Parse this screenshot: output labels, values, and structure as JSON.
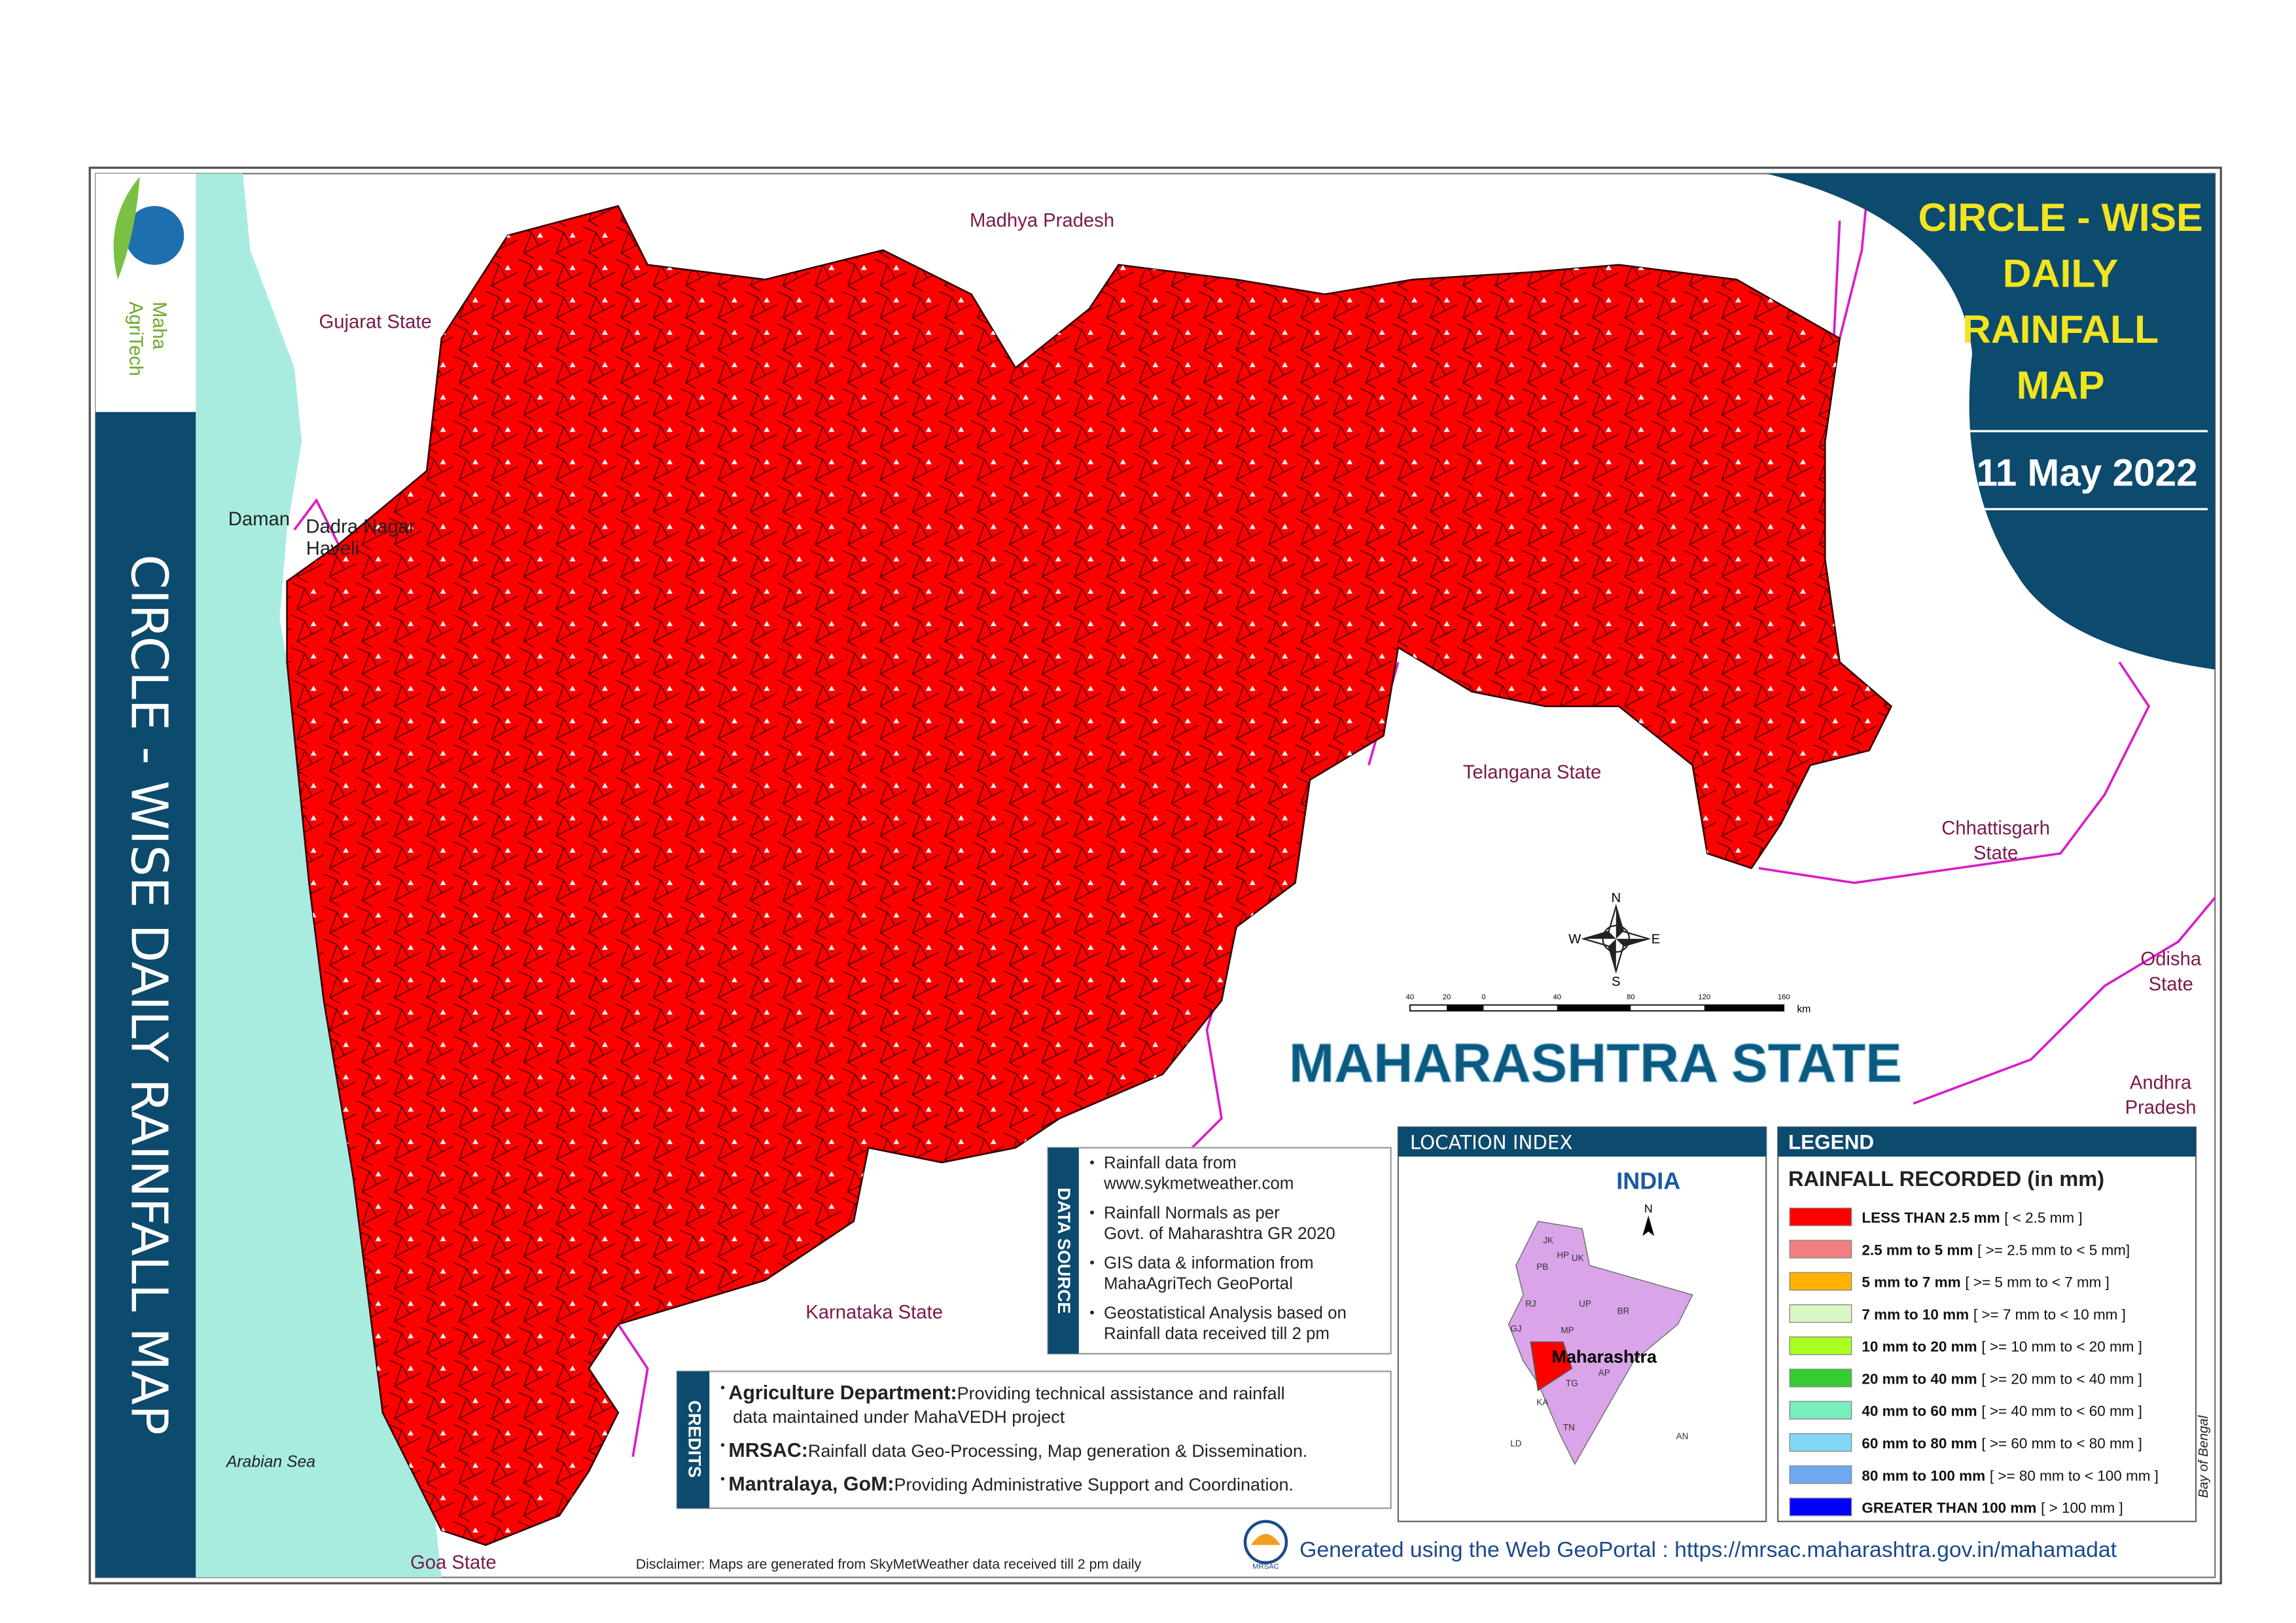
{
  "header": {
    "title_lines": [
      "CIRCLE - WISE",
      "DAILY",
      "RAINFALL",
      "MAP"
    ],
    "date": "11 May 2022",
    "side_banner": "CIRCLE - WISE DAILY RAINFALL MAP",
    "logo": [
      "Maha",
      "AgriTech"
    ]
  },
  "map": {
    "state_name": "MAHARASHTRA  STATE",
    "neighbors": [
      "Madhya Pradesh",
      "Gujarat State",
      "Daman",
      "Dadra Nagar",
      "Haveli",
      "Telangana State",
      "Chhattisgarh",
      "State",
      "Odisha",
      "State",
      "Andhra",
      "Pradesh",
      "Karnataka State",
      "Goa State",
      "Arabian Sea",
      "Bay of Bengal"
    ],
    "compass": [
      "N",
      "E",
      "S",
      "W"
    ],
    "scale_labels": [
      "40",
      "20",
      "0",
      "40",
      "80",
      "120",
      "160"
    ],
    "scale_unit": "km"
  },
  "location_index": {
    "title": "LOCATION  INDEX",
    "country": "INDIA",
    "highlight": "Maharashtra",
    "north": "N",
    "states": [
      "JK",
      "HP",
      "PB",
      "UK",
      "RJ",
      "UP",
      "BR",
      "GJ",
      "MP",
      "TG",
      "KA",
      "TN",
      "AP",
      "LD",
      "AN"
    ]
  },
  "legend": {
    "title": "LEGEND",
    "subtitle": "RAINFALL  RECORDED (in mm)",
    "entries": [
      {
        "label": "LESS THAN  2.5 mm",
        "range": "[ < 2.5 mm ]",
        "color": "#ff0000"
      },
      {
        "label": "2.5 mm to 5 mm",
        "range": "[ >= 2.5 mm  to  < 5 mm]",
        "color": "#f08080"
      },
      {
        "label": "5 mm to 7 mm",
        "range": "[ >= 5 mm to < 7 mm ]",
        "color": "#ffb300"
      },
      {
        "label": "7 mm to 10 mm",
        "range": "[ >= 7 mm to < 10 mm ]",
        "color": "#d8f7c4"
      },
      {
        "label": "10 mm to 20 mm",
        "range": "[ >= 10 mm to < 20 mm ]",
        "color": "#aaff22"
      },
      {
        "label": "20 mm to 40 mm",
        "range": "[ >= 20 mm to < 40 mm ]",
        "color": "#33cc33"
      },
      {
        "label": "40 mm to 60 mm",
        "range": "[ >= 40 mm to < 60 mm ]",
        "color": "#77eebb"
      },
      {
        "label": "60 mm to 80 mm",
        "range": "[ >= 60 mm to < 80 mm ]",
        "color": "#80d8f5"
      },
      {
        "label": "80 mm to 100 mm",
        "range": "[ >= 80 mm to < 100 mm ]",
        "color": "#6fa8ee"
      },
      {
        "label": "GREATER THAN 100 mm",
        "range": "[ > 100 mm ]",
        "color": "#0000ff"
      }
    ]
  },
  "data_source": {
    "title": "DATA  SOURCE",
    "items": [
      [
        "Rainfall data from",
        "www.sykmetweather.com"
      ],
      [
        "Rainfall Normals as per",
        "Govt. of Maharashtra GR 2020"
      ],
      [
        "GIS data & information from",
        "MahaAgriTech GeoPortal"
      ],
      [
        "Geostatistical Analysis based on",
        "Rainfall data received till 2 pm"
      ]
    ]
  },
  "credits": {
    "title": "CREDITS",
    "items": [
      {
        "head": "Agriculture Department:",
        "text": [
          "Providing technical assistance and rainfall",
          "data maintained under MahaVEDH project"
        ]
      },
      {
        "head": "MRSAC:",
        "text": [
          "Rainfall data Geo-Processing, Map generation & Dissemination."
        ]
      },
      {
        "head": "Mantralaya, GoM:",
        "text": [
          "Providing Administrative Support and Coordination."
        ]
      }
    ]
  },
  "footer": {
    "disclaimer": "Disclaimer: Maps are generated from SkyMetWeather data received till 2 pm daily",
    "generated": "Generated using the Web GeoPortal : https://mrsac.maharashtra.gov.in/mahamadat",
    "logo": "MRSAC"
  }
}
